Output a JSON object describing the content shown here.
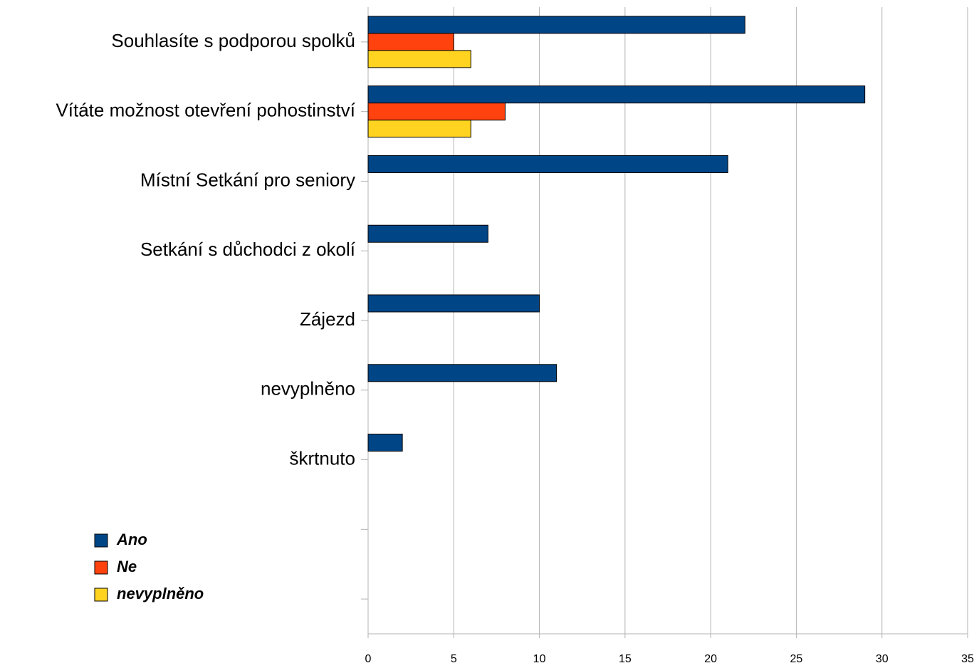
{
  "chart_data": {
    "type": "barh",
    "categories": [
      "Souhlasíte s podporou spolků",
      "Vítáte možnost otevření pohostinství",
      "Místní Setkání pro seniory",
      "Setkání s důchodci z okolí",
      "Zájezd",
      "nevyplněno",
      "škrtnuto",
      null,
      null
    ],
    "series": [
      {
        "name": "Ano",
        "color": "#004586",
        "values": [
          22,
          29,
          21,
          7,
          10,
          11,
          2,
          null,
          null
        ]
      },
      {
        "name": "Ne",
        "color": "#ff420e",
        "values": [
          5,
          8,
          null,
          null,
          null,
          null,
          null,
          null,
          null
        ]
      },
      {
        "name": "nevyplněno",
        "color": "#ffd320",
        "values": [
          6,
          6,
          null,
          null,
          null,
          null,
          null,
          null,
          null
        ]
      }
    ],
    "xlim": [
      0,
      35
    ],
    "xticks": [
      0,
      5,
      10,
      15,
      20,
      25,
      30,
      35
    ],
    "grid": true,
    "legend": "lower left"
  }
}
